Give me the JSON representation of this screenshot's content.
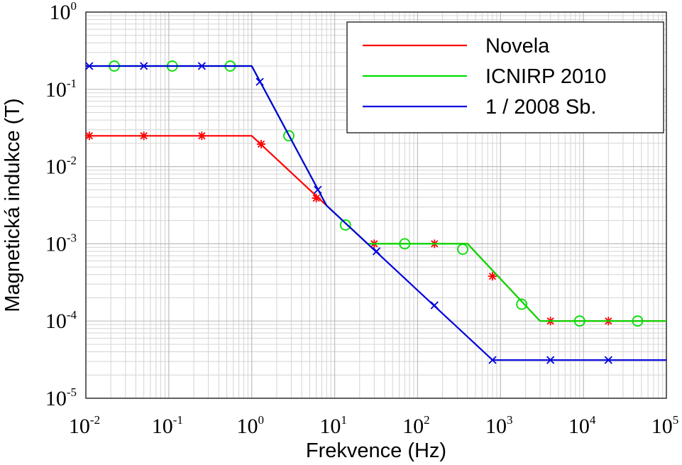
{
  "chart_data": {
    "type": "line",
    "xlabel": "Frekvence (Hz)",
    "ylabel": "Magnetická indukce (T)",
    "xscale": "log",
    "yscale": "log",
    "xlim": [
      0.01,
      100000
    ],
    "ylim": [
      1e-05,
      1
    ],
    "grid": "major and minor",
    "legend_position": "top-right",
    "x_ticks": [
      {
        "base": "10",
        "exp": "-2"
      },
      {
        "base": "10",
        "exp": "-1"
      },
      {
        "base": "10",
        "exp": "0"
      },
      {
        "base": "10",
        "exp": "1"
      },
      {
        "base": "10",
        "exp": "2"
      },
      {
        "base": "10",
        "exp": "3"
      },
      {
        "base": "10",
        "exp": "4"
      },
      {
        "base": "10",
        "exp": "5"
      }
    ],
    "y_ticks": [
      {
        "base": "10",
        "exp": "0"
      },
      {
        "base": "10",
        "exp": "-1"
      },
      {
        "base": "10",
        "exp": "-2"
      },
      {
        "base": "10",
        "exp": "-3"
      },
      {
        "base": "10",
        "exp": "-4"
      },
      {
        "base": "10",
        "exp": "-5"
      }
    ],
    "series": [
      {
        "name": "Novela",
        "color": "#ff0000",
        "marker": "asterisk",
        "points": [
          [
            0.01,
            0.025
          ],
          [
            1,
            0.025
          ],
          [
            8,
            0.003125
          ],
          [
            25,
            0.001
          ],
          [
            400,
            0.001
          ],
          [
            3000,
            0.0001
          ],
          [
            100000,
            0.0001
          ]
        ],
        "marker_points": [
          [
            0.011,
            0.025
          ],
          [
            0.05,
            0.025
          ],
          [
            0.25,
            0.025
          ],
          [
            1.3,
            0.0195
          ],
          [
            6,
            0.0039
          ],
          [
            30,
            0.001
          ],
          [
            160,
            0.001
          ],
          [
            800,
            0.00038
          ],
          [
            4000,
            0.0001
          ],
          [
            20000,
            0.0001
          ]
        ]
      },
      {
        "name": "ICNIRP 2010",
        "color": "#00dd00",
        "marker": "circle",
        "points": [
          [
            0.01,
            0.2
          ],
          [
            1,
            0.2
          ],
          [
            8,
            0.003125
          ],
          [
            25,
            0.001
          ],
          [
            400,
            0.001
          ],
          [
            3000,
            0.0001
          ],
          [
            100000,
            0.0001
          ]
        ],
        "marker_points": [
          [
            0.022,
            0.2
          ],
          [
            0.11,
            0.2
          ],
          [
            0.55,
            0.2
          ],
          [
            2.8,
            0.025
          ],
          [
            13.5,
            0.00175
          ],
          [
            70,
            0.001
          ],
          [
            350,
            0.00085
          ],
          [
            1800,
            0.000165
          ],
          [
            9000,
            0.0001
          ],
          [
            45000,
            0.0001
          ]
        ]
      },
      {
        "name": "1 / 2008 Sb.",
        "color": "#0000dd",
        "marker": "x",
        "points": [
          [
            0.01,
            0.2
          ],
          [
            1,
            0.2
          ],
          [
            8,
            0.003125
          ],
          [
            800,
            3.125e-05
          ],
          [
            100000,
            3.125e-05
          ]
        ],
        "marker_points": [
          [
            0.011,
            0.2
          ],
          [
            0.05,
            0.2
          ],
          [
            0.25,
            0.2
          ],
          [
            1.25,
            0.125
          ],
          [
            6.25,
            0.005
          ],
          [
            32,
            0.0008
          ],
          [
            160,
            0.00016
          ],
          [
            800,
            3.125e-05
          ],
          [
            4000,
            3.125e-05
          ],
          [
            20000,
            3.125e-05
          ]
        ]
      }
    ]
  }
}
